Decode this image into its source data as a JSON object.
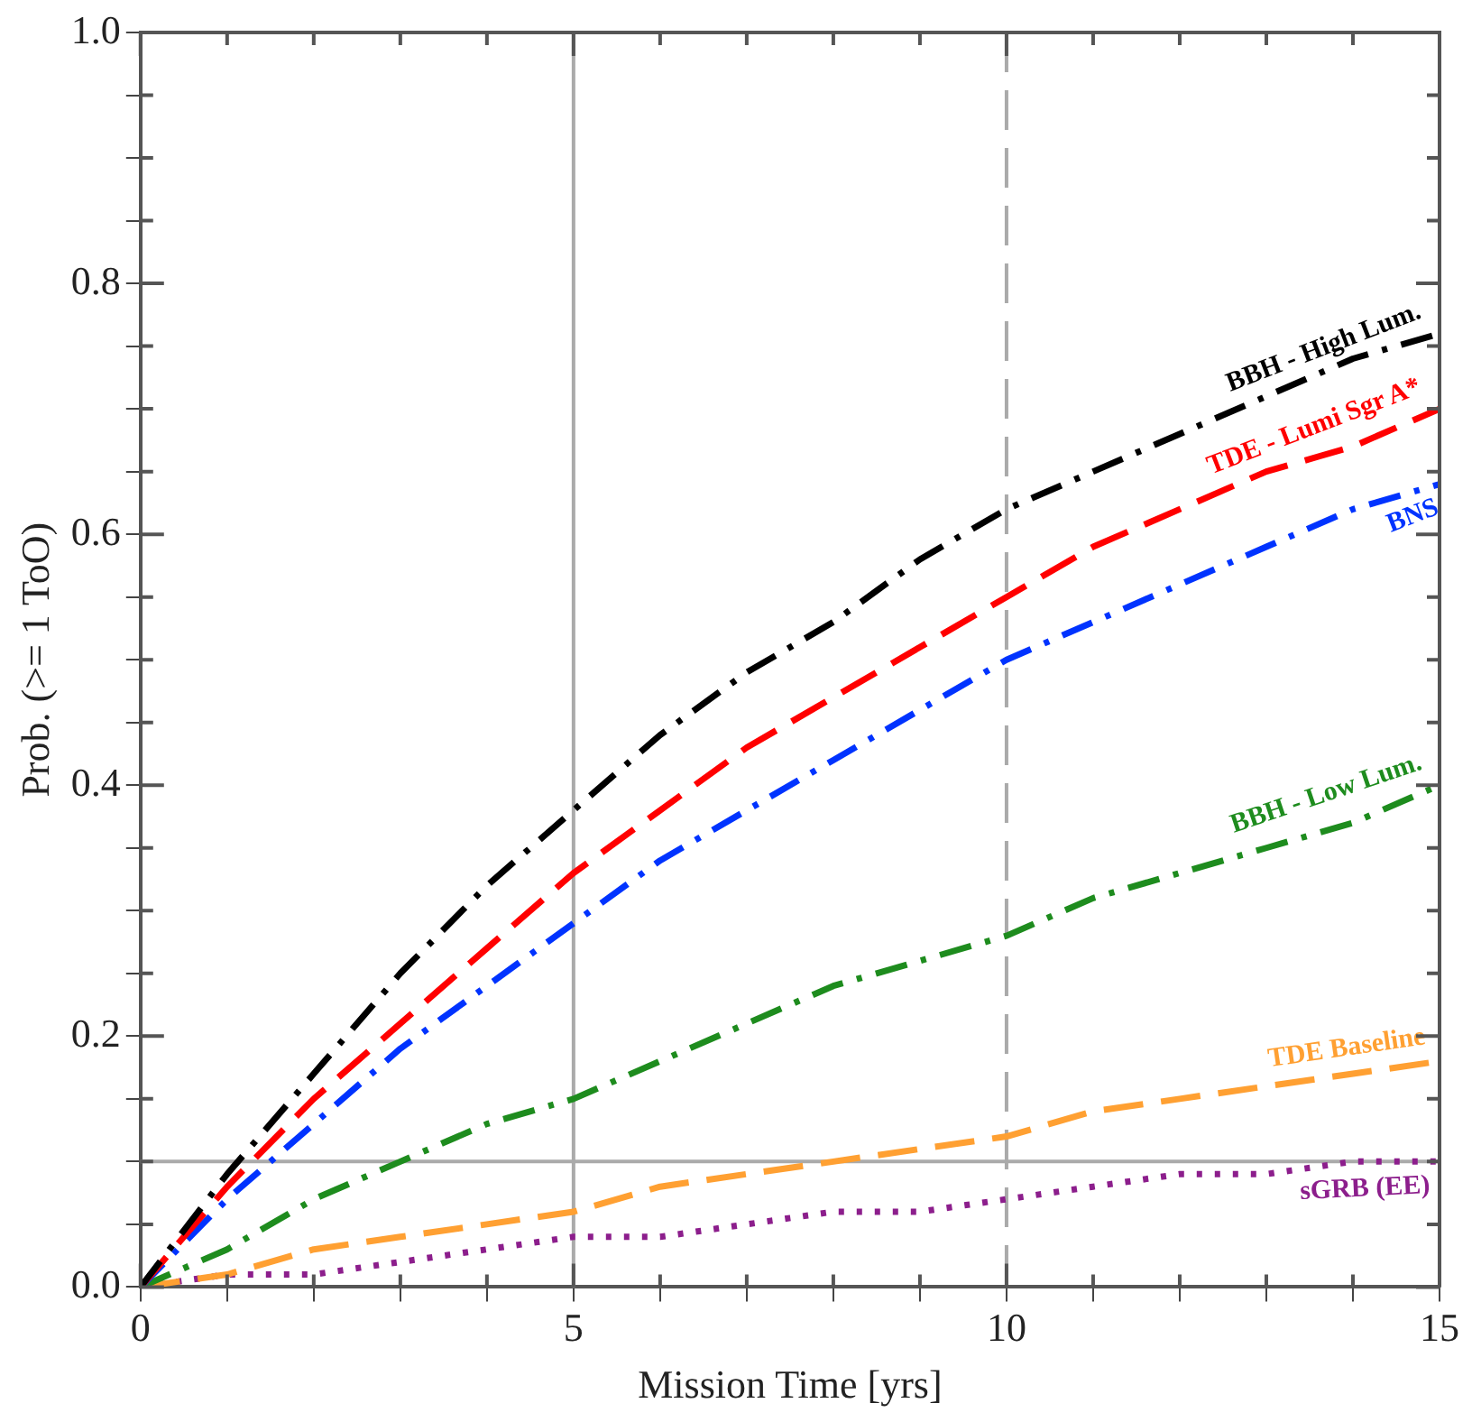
{
  "chart_data": {
    "type": "line",
    "xlabel": "Mission Time [yrs]",
    "ylabel": "Prob. (>= 1 ToO)",
    "x": [
      0,
      1,
      2,
      3,
      4,
      5,
      6,
      7,
      8,
      9,
      10,
      11,
      12,
      13,
      14,
      15
    ],
    "xlim": [
      0,
      15
    ],
    "xticks": [
      0,
      {
        "value": 1,
        "label": null
      },
      {
        "value": 2,
        "label": null
      },
      {
        "value": 3,
        "label": null
      },
      {
        "value": 4,
        "label": null
      },
      5,
      {
        "value": 6,
        "label": null
      },
      {
        "value": 7,
        "label": null
      },
      {
        "value": 8,
        "label": null
      },
      {
        "value": 9,
        "label": null
      },
      10,
      {
        "value": 11,
        "label": null
      },
      {
        "value": 12,
        "label": null
      },
      {
        "value": 13,
        "label": null
      },
      {
        "value": 14,
        "label": null
      },
      15
    ],
    "ylim": [
      0,
      1
    ],
    "yticks": [
      "0.0",
      {
        "value": 0.05,
        "label": null
      },
      {
        "value": 0.1,
        "label": null
      },
      {
        "value": 0.15,
        "label": null
      },
      {
        "value": 0.2,
        "label": "0.2"
      },
      {
        "value": 0.25,
        "label": null
      },
      {
        "value": 0.3,
        "label": null
      },
      {
        "value": 0.35,
        "label": null
      },
      {
        "value": 0.4,
        "label": "0.4"
      },
      {
        "value": 0.45,
        "label": null
      },
      {
        "value": 0.5,
        "label": null
      },
      {
        "value": 0.55,
        "label": null
      },
      {
        "value": 0.6,
        "label": "0.6"
      },
      {
        "value": 0.65,
        "label": null
      },
      {
        "value": 0.7,
        "label": null
      },
      {
        "value": 0.75,
        "label": null
      },
      {
        "value": 0.8,
        "label": "0.8"
      },
      {
        "value": 0.85,
        "label": null
      },
      {
        "value": 0.9,
        "label": null
      },
      {
        "value": 0.95,
        "label": null
      },
      {
        "value": 1,
        "label": "1.0"
      }
    ],
    "grid": false,
    "legend": false,
    "marker": "none",
    "ref_lines": [
      {
        "axis": "x",
        "value": 5,
        "color": "#aaaaaa",
        "line_style": "solid"
      },
      {
        "axis": "x",
        "value": 10,
        "color": "#aaaaaa",
        "line_style": "dashed"
      },
      {
        "axis": "y",
        "value": 0.1,
        "color": "#aaaaaa",
        "line_style": "solid"
      }
    ],
    "series": [
      {
        "name": "BBH - High Lum.",
        "color": "#000000",
        "line_style": "dashdot",
        "values": [
          0,
          0.09,
          0.17,
          0.25,
          0.32,
          0.38,
          0.44,
          0.49,
          0.53,
          0.58,
          0.62,
          0.65,
          0.68,
          0.71,
          0.74,
          0.76
        ]
      },
      {
        "name": "TDE - Lumi Sgr A*",
        "color": "#ff0000",
        "line_style": "dashed",
        "values": [
          0,
          0.08,
          0.15,
          0.21,
          0.27,
          0.33,
          0.38,
          0.43,
          0.47,
          0.51,
          0.55,
          0.59,
          0.62,
          0.65,
          0.67,
          0.7
        ]
      },
      {
        "name": "BNS",
        "color": "#0033ff",
        "line_style": "dashdot",
        "values": [
          0,
          0.07,
          0.13,
          0.19,
          0.24,
          0.29,
          0.34,
          0.38,
          0.42,
          0.46,
          0.5,
          0.53,
          0.56,
          0.59,
          0.62,
          0.64
        ]
      },
      {
        "name": "BBH - Low Lum.",
        "color": "#1e8c1e",
        "line_style": "dashdot",
        "values": [
          0,
          0.03,
          0.07,
          0.1,
          0.13,
          0.15,
          0.18,
          0.21,
          0.24,
          0.26,
          0.28,
          0.31,
          0.33,
          0.35,
          0.37,
          0.4
        ]
      },
      {
        "name": "TDE Baseline",
        "color": "#ffa032",
        "line_style": "dashed",
        "values": [
          0,
          0.01,
          0.03,
          0.04,
          0.05,
          0.06,
          0.08,
          0.09,
          0.1,
          0.11,
          0.12,
          0.14,
          0.15,
          0.16,
          0.17,
          0.18
        ]
      },
      {
        "name": "sGRB (EE)",
        "color": "#8c1e8c",
        "line_style": "dotted",
        "values": [
          0,
          0.01,
          0.01,
          0.02,
          0.03,
          0.04,
          0.04,
          0.05,
          0.06,
          0.06,
          0.07,
          0.08,
          0.09,
          0.09,
          0.1,
          0.1
        ]
      }
    ]
  }
}
